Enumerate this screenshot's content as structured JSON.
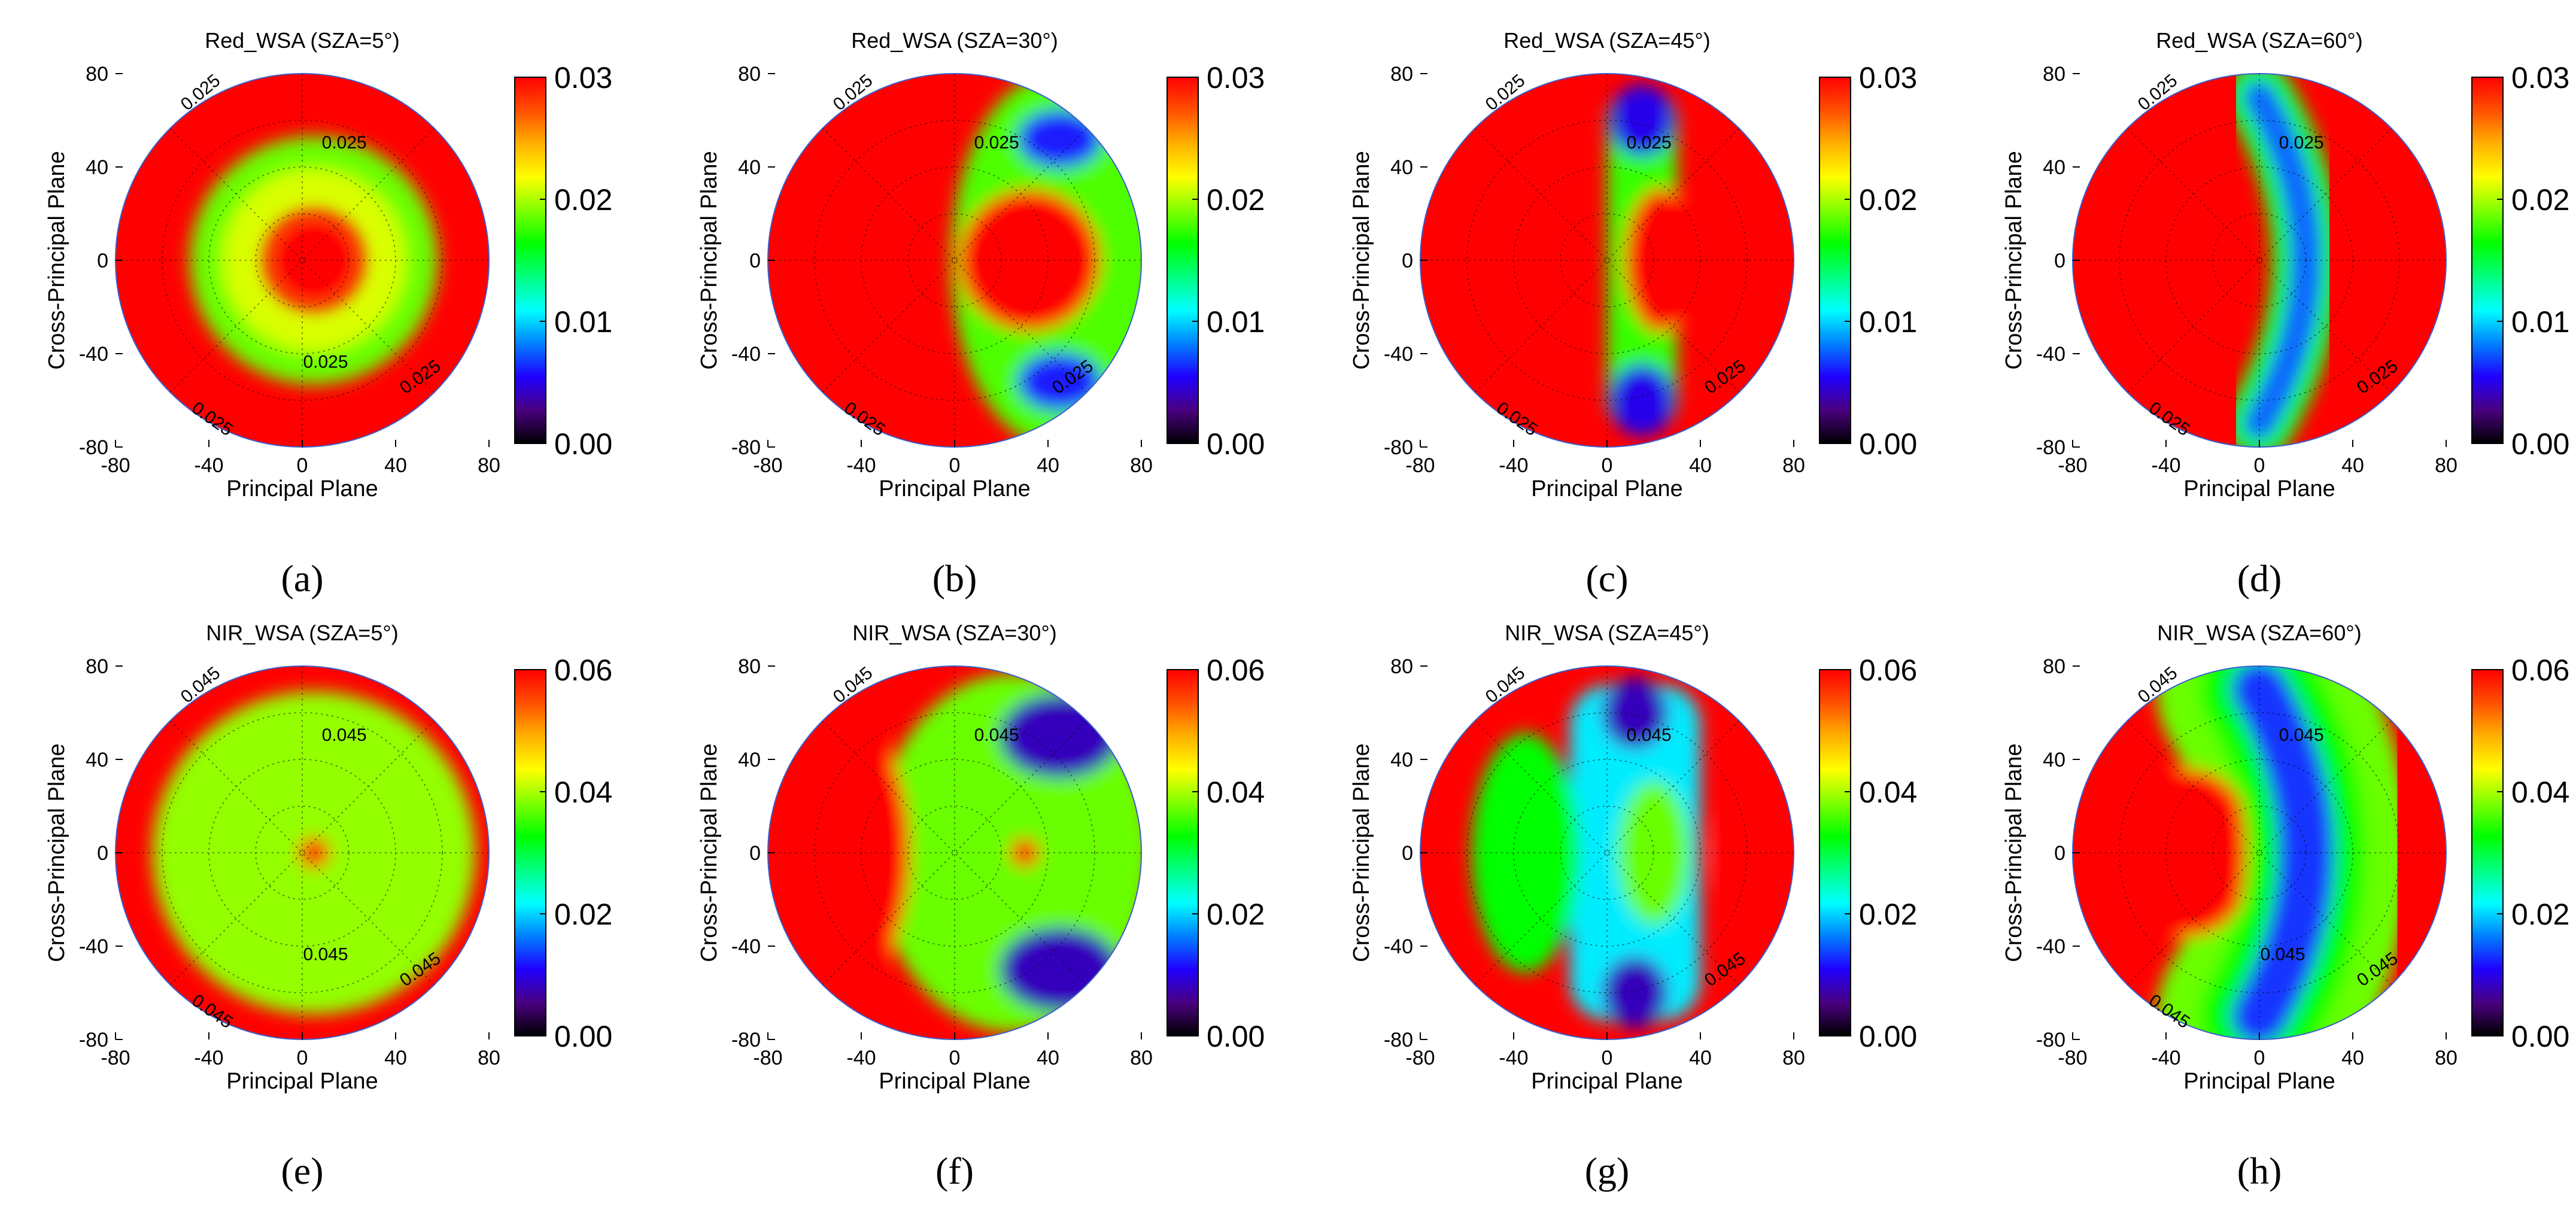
{
  "figure": {
    "colormap": [
      "#000000",
      "#4a0080",
      "#2000ff",
      "#0080ff",
      "#00ffff",
      "#00ff80",
      "#00ff00",
      "#80ff00",
      "#ffff00",
      "#ffb000",
      "#ff5000",
      "#ff0000"
    ],
    "background": "#ffffff"
  },
  "chart_data": [
    {
      "type": "heatmap",
      "panel": "(a)",
      "title": "Red_WSA (SZA=5°)",
      "band": "Red",
      "sza": 5,
      "xlabel": "Principal Plane",
      "ylabel": "Cross-Principal Plane",
      "xlim": [
        -80,
        80
      ],
      "ylim": [
        -80,
        80
      ],
      "xticks": [
        "-80",
        "-40",
        "0",
        "40",
        "80"
      ],
      "yticks": [
        "80",
        "40",
        "0",
        "-40",
        "-80"
      ],
      "colorbar": {
        "min": 0.0,
        "max": 0.03,
        "ticks": [
          "0.03",
          "0.02",
          "0.01",
          "0.00"
        ]
      },
      "contour_level": "0.025",
      "contour_labels": [
        "0.025",
        "0.025",
        "0.025",
        "0.025",
        "0.025"
      ],
      "pattern": "ring",
      "feature_center": [
        5,
        0
      ],
      "feature_extent": [
        35,
        35
      ],
      "min_value": 0.019
    },
    {
      "type": "heatmap",
      "panel": "(b)",
      "title": "Red_WSA (SZA=30°)",
      "band": "Red",
      "sza": 30,
      "xlabel": "Principal Plane",
      "ylabel": "Cross-Principal Plane",
      "xlim": [
        -80,
        80
      ],
      "ylim": [
        -80,
        80
      ],
      "xticks": [
        "-80",
        "-40",
        "0",
        "40",
        "80"
      ],
      "yticks": [
        "80",
        "40",
        "0",
        "-40",
        "-80"
      ],
      "colorbar": {
        "min": 0.0,
        "max": 0.03,
        "ticks": [
          "0.03",
          "0.02",
          "0.01",
          "0.00"
        ]
      },
      "contour_level": "0.025",
      "contour_labels": [
        "0.025",
        "0.025",
        "0.025",
        "0.025"
      ],
      "pattern": "crescent-ring",
      "feature_center": [
        35,
        0
      ],
      "feature_extent": [
        25,
        65
      ],
      "min_value": 0.006
    },
    {
      "type": "heatmap",
      "panel": "(c)",
      "title": "Red_WSA (SZA=45°)",
      "band": "Red",
      "sza": 45,
      "xlabel": "Principal Plane",
      "ylabel": "Cross-Principal Plane",
      "xlim": [
        -80,
        80
      ],
      "ylim": [
        -80,
        80
      ],
      "xticks": [
        "-80",
        "-40",
        "0",
        "40",
        "80"
      ],
      "yticks": [
        "80",
        "40",
        "0",
        "-40",
        "-80"
      ],
      "colorbar": {
        "min": 0.0,
        "max": 0.03,
        "ticks": [
          "0.03",
          "0.02",
          "0.01",
          "0.00"
        ]
      },
      "contour_level": "0.025",
      "contour_labels": [
        "0.025",
        "0.025",
        "0.025",
        "0.025"
      ],
      "pattern": "band",
      "feature_center": [
        15,
        0
      ],
      "feature_extent": [
        15,
        70
      ],
      "min_value": 0.005
    },
    {
      "type": "heatmap",
      "panel": "(d)",
      "title": "Red_WSA (SZA=60°)",
      "band": "Red",
      "sza": 60,
      "xlabel": "Principal Plane",
      "ylabel": "Cross-Principal Plane",
      "xlim": [
        -80,
        80
      ],
      "ylim": [
        -80,
        80
      ],
      "xticks": [
        "-80",
        "-40",
        "0",
        "40",
        "80"
      ],
      "yticks": [
        "80",
        "40",
        "0",
        "-40",
        "-80"
      ],
      "colorbar": {
        "min": 0.0,
        "max": 0.03,
        "ticks": [
          "0.03",
          "0.02",
          "0.01",
          "0.00"
        ]
      },
      "contour_level": "0.025",
      "contour_labels": [
        "0.025",
        "0.025",
        "0.025",
        "0.025"
      ],
      "pattern": "crescent",
      "feature_center": [
        5,
        0
      ],
      "feature_extent": [
        15,
        70
      ],
      "min_value": 0.004
    },
    {
      "type": "heatmap",
      "panel": "(e)",
      "title": "NIR_WSA (SZA=5°)",
      "band": "NIR",
      "sza": 5,
      "xlabel": "Principal Plane",
      "ylabel": "Cross-Principal Plane",
      "xlim": [
        -80,
        80
      ],
      "ylim": [
        -80,
        80
      ],
      "xticks": [
        "-80",
        "-40",
        "0",
        "40",
        "80"
      ],
      "yticks": [
        "80",
        "40",
        "0",
        "-40",
        "-80"
      ],
      "colorbar": {
        "min": 0.0,
        "max": 0.06,
        "ticks": [
          "0.06",
          "0.04",
          "0.02",
          "0.00"
        ]
      },
      "contour_level": "0.045",
      "contour_labels": [
        "0.045",
        "0.045",
        "0.045",
        "0.045",
        "0.045"
      ],
      "pattern": "disk-hotspot",
      "feature_center": [
        5,
        0
      ],
      "feature_extent": [
        70,
        70
      ],
      "min_value": 0.036
    },
    {
      "type": "heatmap",
      "panel": "(f)",
      "title": "NIR_WSA (SZA=30°)",
      "band": "NIR",
      "sza": 30,
      "xlabel": "Principal Plane",
      "ylabel": "Cross-Principal Plane",
      "xlim": [
        -80,
        80
      ],
      "ylim": [
        -80,
        80
      ],
      "xticks": [
        "-80",
        "-40",
        "0",
        "40",
        "80"
      ],
      "yticks": [
        "80",
        "40",
        "0",
        "-40",
        "-80"
      ],
      "colorbar": {
        "min": 0.0,
        "max": 0.06,
        "ticks": [
          "0.06",
          "0.04",
          "0.02",
          "0.00"
        ]
      },
      "contour_level": "0.045",
      "contour_labels": [
        "0.045",
        "0.045"
      ],
      "pattern": "crescent-hotspot",
      "feature_center": [
        30,
        0
      ],
      "feature_extent": [
        40,
        70
      ],
      "min_value": 0.008
    },
    {
      "type": "heatmap",
      "panel": "(g)",
      "title": "NIR_WSA (SZA=45°)",
      "band": "NIR",
      "sza": 45,
      "xlabel": "Principal Plane",
      "ylabel": "Cross-Principal Plane",
      "xlim": [
        -80,
        80
      ],
      "ylim": [
        -80,
        80
      ],
      "xticks": [
        "-80",
        "-40",
        "0",
        "40",
        "80"
      ],
      "yticks": [
        "80",
        "40",
        "0",
        "-40",
        "-80"
      ],
      "colorbar": {
        "min": 0.0,
        "max": 0.06,
        "ticks": [
          "0.06",
          "0.04",
          "0.02",
          "0.00"
        ]
      },
      "contour_level": "0.045",
      "contour_labels": [
        "0.045",
        "0.045",
        "0.045"
      ],
      "pattern": "band",
      "feature_center": [
        12,
        0
      ],
      "feature_extent": [
        28,
        72
      ],
      "min_value": 0.008
    },
    {
      "type": "heatmap",
      "panel": "(h)",
      "title": "NIR_WSA (SZA=60°)",
      "band": "NIR",
      "sza": 60,
      "xlabel": "Principal Plane",
      "ylabel": "Cross-Principal Plane",
      "xlim": [
        -80,
        80
      ],
      "ylim": [
        -80,
        80
      ],
      "xticks": [
        "-80",
        "-40",
        "0",
        "40",
        "80"
      ],
      "yticks": [
        "80",
        "40",
        "0",
        "-40",
        "-80"
      ],
      "colorbar": {
        "min": 0.0,
        "max": 0.06,
        "ticks": [
          "0.06",
          "0.04",
          "0.02",
          "0.00"
        ]
      },
      "contour_level": "0.045",
      "contour_labels": [
        "0.045",
        "0.045",
        "0.045",
        "0.045",
        "0.045"
      ],
      "pattern": "crescent",
      "feature_center": [
        5,
        0
      ],
      "feature_extent": [
        30,
        72
      ],
      "min_value": 0.006
    }
  ]
}
